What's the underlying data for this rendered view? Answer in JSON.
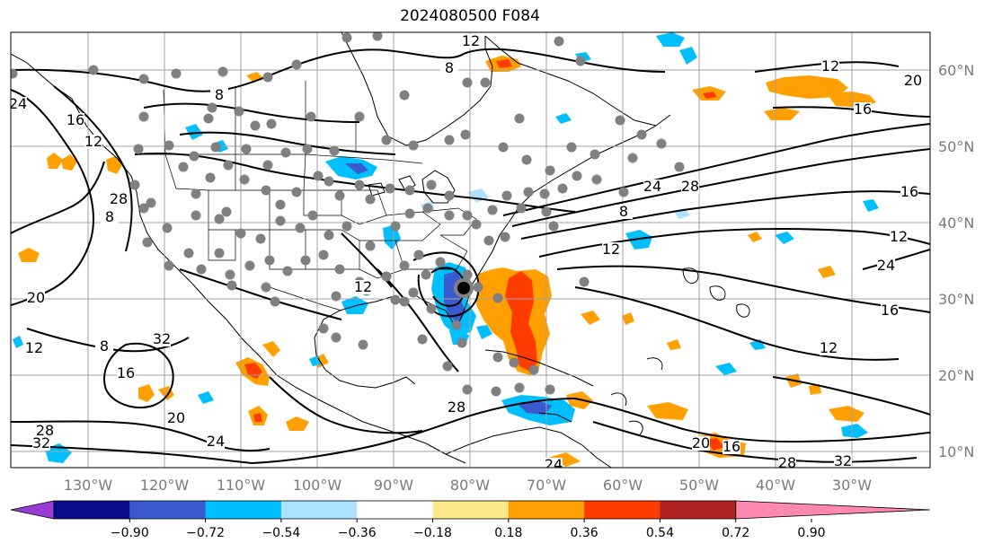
{
  "title": "2024080500 F084",
  "longitude_labels": [
    "130°W",
    "120°W",
    "110°W",
    "100°W",
    "90°W",
    "80°W",
    "70°W",
    "60°W",
    "50°W",
    "40°W",
    "30°W"
  ],
  "latitude_labels": [
    "60°N",
    "50°N",
    "40°N",
    "30°N",
    "20°N",
    "10°N"
  ],
  "colorbar": {
    "ticks": [
      "−0.90",
      "−0.72",
      "−0.54",
      "−0.36",
      "−0.18",
      "0.18",
      "0.36",
      "0.54",
      "0.72",
      "0.90"
    ],
    "colors": [
      "#9a3bd6",
      "#0a0a8a",
      "#3a5bd0",
      "#00bfff",
      "#aee2ff",
      "#ffffff",
      "#fde98a",
      "#ffa000",
      "#ff3c00",
      "#b22222",
      "#ff88b0"
    ]
  },
  "contour_labels": [
    "8",
    "12",
    "16",
    "20",
    "24",
    "28",
    "32",
    "8",
    "12",
    "16",
    "20",
    "24",
    "28",
    "32",
    "12",
    "8",
    "12",
    "16",
    "20",
    "24",
    "28",
    "8",
    "12",
    "12",
    "28",
    "24",
    "28",
    "32",
    "16",
    "20",
    "12",
    "24",
    "16",
    "12",
    "16",
    "8"
  ],
  "storm_marker": "storm-center"
}
